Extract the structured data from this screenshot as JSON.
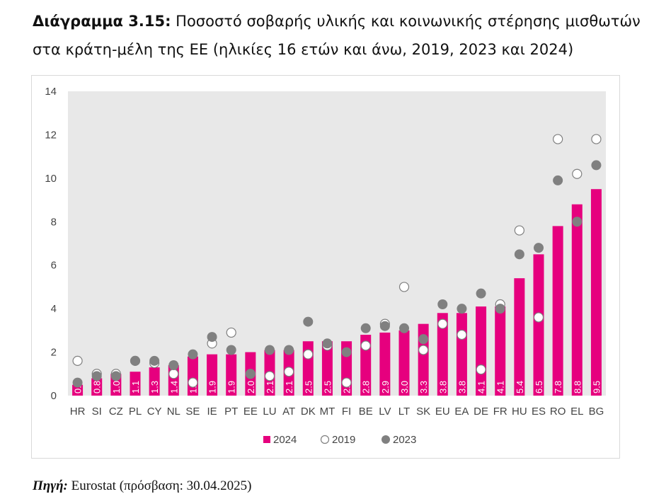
{
  "title": {
    "label": "Διάγραμμα 3.15:",
    "text": "Ποσοστό σοβαρής υλικής και κοινωνικής στέρησης μισθωτών στα κράτη-μέλη της ΕΕ (ηλικίες 16 ετών και άνω, 2019, 2023 και 2024)"
  },
  "source": {
    "label": "Πηγή:",
    "text": "Eurostat (πρόσβαση: 30.04.2025)"
  },
  "chart_data": {
    "type": "bar",
    "title": "",
    "xlabel": "",
    "ylabel": "",
    "ylim": [
      0,
      14
    ],
    "yticks": [
      0,
      2,
      4,
      6,
      8,
      10,
      12,
      14
    ],
    "legend_position": "bottom",
    "categories": [
      "HR",
      "SI",
      "CZ",
      "PL",
      "CY",
      "NL",
      "SE",
      "IE",
      "PT",
      "EE",
      "LU",
      "AT",
      "DK",
      "MT",
      "FI",
      "BE",
      "LV",
      "LT",
      "SK",
      "EU",
      "EA",
      "DE",
      "FR",
      "HU",
      "ES",
      "RO",
      "EL",
      "BG"
    ],
    "series": [
      {
        "name": "2024",
        "mark": "bar",
        "color": "#e6007e",
        "values": [
          0.5,
          0.8,
          1.0,
          1.1,
          1.3,
          1.4,
          1.8,
          1.9,
          1.9,
          2.0,
          2.1,
          2.1,
          2.5,
          2.5,
          2.5,
          2.8,
          2.9,
          3.0,
          3.3,
          3.8,
          3.8,
          4.1,
          4.1,
          5.4,
          6.5,
          7.8,
          8.8,
          9.5
        ],
        "data_labels": [
          "0.5",
          "0.8",
          "1.0",
          "1.1",
          "1.3",
          "1.4",
          "1.8",
          "1.9",
          "1.9",
          "2.0",
          "2.1",
          "2.1",
          "2.5",
          "2.5",
          "2.5",
          "2.8",
          "2.9",
          "3.0",
          "3.3",
          "3.8",
          "3.8",
          "4.1",
          "4.1",
          "5.4",
          "6.5",
          "7.8",
          "8.8",
          "9.5"
        ]
      },
      {
        "name": "2019",
        "mark": "open-circle",
        "color": "#ffffff",
        "values": [
          1.6,
          1.0,
          1.0,
          1.6,
          1.5,
          1.0,
          0.6,
          2.4,
          2.9,
          1.0,
          0.9,
          1.1,
          1.9,
          2.3,
          0.6,
          2.3,
          3.3,
          5.0,
          2.1,
          3.3,
          2.8,
          1.2,
          4.2,
          7.6,
          3.6,
          11.8,
          10.2,
          11.8
        ]
      },
      {
        "name": "2023",
        "mark": "filled-circle",
        "color": "#808080",
        "values": [
          0.6,
          0.9,
          0.9,
          1.6,
          1.6,
          1.4,
          1.9,
          2.7,
          2.1,
          1.0,
          2.1,
          2.1,
          3.4,
          2.4,
          2.0,
          3.1,
          3.2,
          3.1,
          2.6,
          4.2,
          4.0,
          4.7,
          4.0,
          6.5,
          6.8,
          9.9,
          8.0,
          10.6
        ]
      }
    ]
  }
}
